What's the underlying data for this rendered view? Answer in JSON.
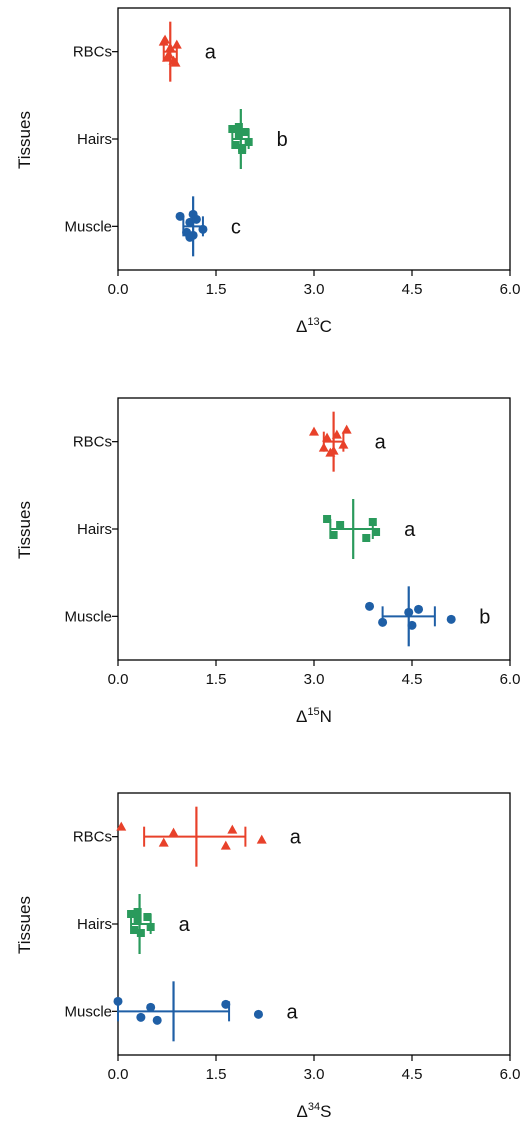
{
  "chart_data": [
    {
      "type": "scatter",
      "xlabel": {
        "prefix": "Δ",
        "sup": "13",
        "suffix": "C"
      },
      "ylabel": "Tissues",
      "xlim": [
        0,
        6
      ],
      "xticks": [
        "0.0",
        "1.5",
        "3.0",
        "4.5",
        "6.0"
      ],
      "categories": [
        "RBCs",
        "Hairs",
        "Muscle"
      ],
      "series": [
        {
          "category": "RBCs",
          "marker": "triangle",
          "color": "#e8412a",
          "points": [
            0.7,
            0.75,
            0.8,
            0.85,
            0.9,
            0.78,
            0.72,
            0.88
          ],
          "mean": 0.8,
          "err": [
            0.7,
            0.9
          ],
          "letter": "a"
        },
        {
          "category": "Hairs",
          "marker": "square",
          "color": "#2a9a5c",
          "points": [
            1.75,
            1.8,
            1.85,
            1.9,
            1.95,
            2.0,
            1.85,
            1.9
          ],
          "mean": 1.88,
          "err": [
            1.75,
            2.0
          ],
          "letter": "b"
        },
        {
          "category": "Muscle",
          "marker": "circle",
          "color": "#1f5fa6",
          "points": [
            0.95,
            1.05,
            1.1,
            1.15,
            1.2,
            1.3,
            1.15,
            1.1
          ],
          "mean": 1.15,
          "err": [
            1.0,
            1.3
          ],
          "letter": "c"
        }
      ]
    },
    {
      "type": "scatter",
      "xlabel": {
        "prefix": "Δ",
        "sup": "15",
        "suffix": "N"
      },
      "ylabel": "Tissues",
      "xlim": [
        0,
        6
      ],
      "xticks": [
        "0.0",
        "1.5",
        "3.0",
        "4.5",
        "6.0"
      ],
      "categories": [
        "RBCs",
        "Hairs",
        "Muscle"
      ],
      "series": [
        {
          "category": "RBCs",
          "marker": "triangle",
          "color": "#e8412a",
          "points": [
            3.0,
            3.15,
            3.2,
            3.3,
            3.35,
            3.45,
            3.5,
            3.25
          ],
          "mean": 3.3,
          "err": [
            3.15,
            3.45
          ],
          "letter": "a"
        },
        {
          "category": "Hairs",
          "marker": "square",
          "color": "#2a9a5c",
          "points": [
            3.2,
            3.3,
            3.4,
            3.8,
            3.9,
            3.95
          ],
          "mean": 3.6,
          "err": [
            3.25,
            3.9
          ],
          "letter": "a"
        },
        {
          "category": "Muscle",
          "marker": "circle",
          "color": "#1f5fa6",
          "points": [
            3.85,
            4.05,
            4.45,
            4.5,
            4.6,
            5.1
          ],
          "mean": 4.45,
          "err": [
            4.05,
            4.85
          ],
          "letter": "b"
        }
      ]
    },
    {
      "type": "scatter",
      "xlabel": {
        "prefix": "Δ",
        "sup": "34",
        "suffix": "S"
      },
      "ylabel": "Tissues",
      "xlim": [
        0,
        6
      ],
      "xticks": [
        "0.0",
        "1.5",
        "3.0",
        "4.5",
        "6.0"
      ],
      "categories": [
        "RBCs",
        "Hairs",
        "Muscle"
      ],
      "series": [
        {
          "category": "RBCs",
          "marker": "triangle",
          "color": "#e8412a",
          "points": [
            0.05,
            0.7,
            0.85,
            1.65,
            1.75,
            2.2
          ],
          "mean": 1.2,
          "err": [
            0.4,
            1.95
          ],
          "letter": "a"
        },
        {
          "category": "Hairs",
          "marker": "square",
          "color": "#2a9a5c",
          "points": [
            0.2,
            0.25,
            0.3,
            0.35,
            0.45,
            0.5,
            0.3
          ],
          "mean": 0.33,
          "err": [
            0.2,
            0.5
          ],
          "letter": "a"
        },
        {
          "category": "Muscle",
          "marker": "circle",
          "color": "#1f5fa6",
          "points": [
            0.0,
            0.35,
            0.5,
            0.6,
            1.65,
            2.15
          ],
          "mean": 0.85,
          "err": [
            0.0,
            1.7
          ],
          "letter": "a"
        }
      ]
    }
  ]
}
